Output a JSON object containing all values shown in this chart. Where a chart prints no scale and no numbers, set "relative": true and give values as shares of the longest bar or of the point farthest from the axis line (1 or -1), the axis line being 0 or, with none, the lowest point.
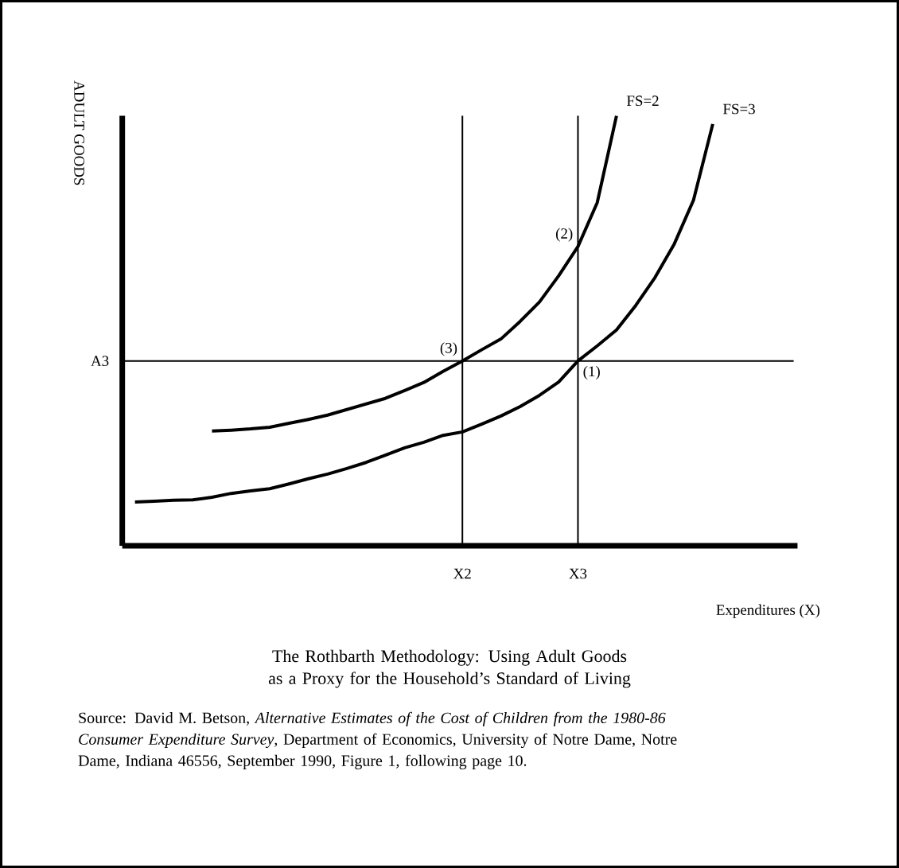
{
  "chart_data": {
    "type": "line",
    "relative": true,
    "title": "The Rothbarth Methodology: Using Adult Goods as a Proxy for the Household’s Standard of Living",
    "xlabel": "Expenditures (X)",
    "ylabel": "ADULT GOODS",
    "categories": [
      null,
      null,
      null,
      null,
      null,
      null,
      null,
      null,
      null,
      null,
      null,
      null,
      null,
      null,
      null,
      null,
      null,
      "X2",
      null,
      null,
      null,
      null,
      null,
      "X3",
      null,
      null,
      null,
      null,
      null,
      null,
      null,
      null,
      null,
      null,
      null
    ],
    "series": [
      {
        "name": "FS=2",
        "color": "#000000",
        "values": [
          null,
          null,
          null,
          null,
          0.267,
          0.269,
          0.272,
          0.276,
          0.285,
          0.294,
          0.304,
          0.317,
          0.33,
          0.343,
          0.361,
          0.38,
          0.406,
          0.43,
          0.456,
          0.481,
          0.522,
          0.567,
          0.628,
          0.696,
          0.798,
          1.0,
          null,
          null,
          null,
          null,
          null,
          null,
          null,
          null,
          null
        ]
      },
      {
        "name": "FS=3",
        "color": "#000000",
        "values": [
          0.102,
          0.104,
          0.106,
          0.107,
          0.113,
          0.122,
          0.128,
          0.133,
          0.144,
          0.156,
          0.167,
          0.18,
          0.194,
          0.211,
          0.228,
          0.241,
          0.257,
          0.265,
          0.283,
          0.302,
          0.324,
          0.35,
          0.381,
          0.43,
          0.465,
          0.502,
          0.559,
          0.624,
          0.702,
          0.804,
          0.981,
          null,
          null,
          null,
          null
        ]
      }
    ],
    "ref_lines": [
      {
        "axis": "y",
        "value": 0.43,
        "label": "A3"
      },
      {
        "axis": "x",
        "value": "X2"
      },
      {
        "axis": "x",
        "value": "X3"
      }
    ],
    "annotations": [
      {
        "text": "(3)",
        "x": "X2",
        "y": 0.43
      },
      {
        "text": "(2)",
        "x": "X3",
        "y": 0.696
      },
      {
        "text": "(1)",
        "x": "X3",
        "y": 0.43
      },
      "Source: David M. Betson, *Alternative Estimates of the Cost of Children from the 1980-86 Consumer Expenditure Survey*, Department of Economics, University of Notre Dame, Notre Dame, Indiana 46556, September 1990, Figure 1, following page 10."
    ]
  }
}
